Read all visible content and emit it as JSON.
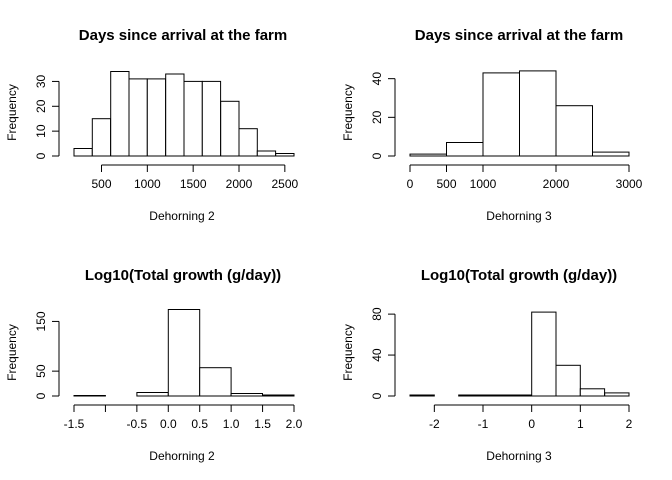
{
  "chart_data": [
    {
      "type": "histogram",
      "title": "Days since arrival at the farm",
      "xlabel": "Dehorning 2",
      "ylabel": "Frequency",
      "xlim": [
        200,
        2600
      ],
      "ylim": [
        0,
        35
      ],
      "x_ticks": [
        500,
        1000,
        1500,
        2000,
        2500
      ],
      "x_tick_labels": [
        "500",
        "1000",
        "1500",
        "2000",
        "2500"
      ],
      "y_ticks": [
        0,
        10,
        20,
        30
      ],
      "y_tick_labels": [
        "0",
        "10",
        "20",
        "30"
      ],
      "bins": [
        200,
        400,
        600,
        800,
        1000,
        1200,
        1400,
        1600,
        1800,
        2000,
        2200,
        2400,
        2600
      ],
      "values": [
        3,
        15,
        34,
        31,
        31,
        33,
        30,
        30,
        22,
        11,
        2,
        1
      ]
    },
    {
      "type": "histogram",
      "title": "Days since arrival at the farm",
      "xlabel": "Dehorning 3",
      "ylabel": "Frequency",
      "xlim": [
        0,
        3000
      ],
      "ylim": [
        0,
        45
      ],
      "x_ticks": [
        0,
        500,
        1000,
        2000,
        3000
      ],
      "x_tick_labels": [
        "0",
        "500",
        "1000",
        "2000",
        "3000"
      ],
      "y_ticks": [
        0,
        20,
        40
      ],
      "y_tick_labels": [
        "0",
        "20",
        "40"
      ],
      "bins": [
        0,
        500,
        1000,
        1500,
        2000,
        2500,
        3000
      ],
      "values": [
        1,
        7,
        43,
        44,
        26,
        2
      ]
    },
    {
      "type": "histogram",
      "title": "Log10(Total growth (g/day))",
      "xlabel": "Dehorning 2",
      "ylabel": "Frequency",
      "xlim": [
        -1.5,
        2.0
      ],
      "ylim": [
        0,
        175
      ],
      "x_ticks": [
        -1.5,
        -1.0,
        -0.5,
        0.0,
        0.5,
        1.0,
        1.5,
        2.0
      ],
      "x_tick_labels": [
        "-1.5",
        "",
        "-0.5",
        "0.0",
        "0.5",
        "1.0",
        "1.5",
        "2.0"
      ],
      "y_ticks": [
        0,
        50,
        150
      ],
      "y_tick_labels": [
        "0",
        "50",
        "150"
      ],
      "bins": [
        -1.5,
        -1.0,
        -0.5,
        0.0,
        0.5,
        1.0,
        1.5,
        2.0
      ],
      "values": [
        1,
        0,
        7,
        174,
        57,
        5,
        2
      ]
    },
    {
      "type": "histogram",
      "title": "Log10(Total growth (g/day))",
      "xlabel": "Dehorning 3",
      "ylabel": "Frequency",
      "xlim": [
        -2.5,
        2.0
      ],
      "ylim": [
        0,
        85
      ],
      "x_ticks": [
        -2,
        -1,
        0,
        1,
        2
      ],
      "x_tick_labels": [
        "-2",
        "-1",
        "0",
        "1",
        "2"
      ],
      "y_ticks": [
        0,
        40,
        80
      ],
      "y_tick_labels": [
        "0",
        "40",
        "80"
      ],
      "bins": [
        -2.5,
        -2.0,
        -1.5,
        -1.0,
        -0.5,
        0.0,
        0.5,
        1.0,
        1.5,
        2.0
      ],
      "values": [
        1,
        0,
        1,
        1,
        1,
        82,
        30,
        7,
        3
      ]
    }
  ]
}
